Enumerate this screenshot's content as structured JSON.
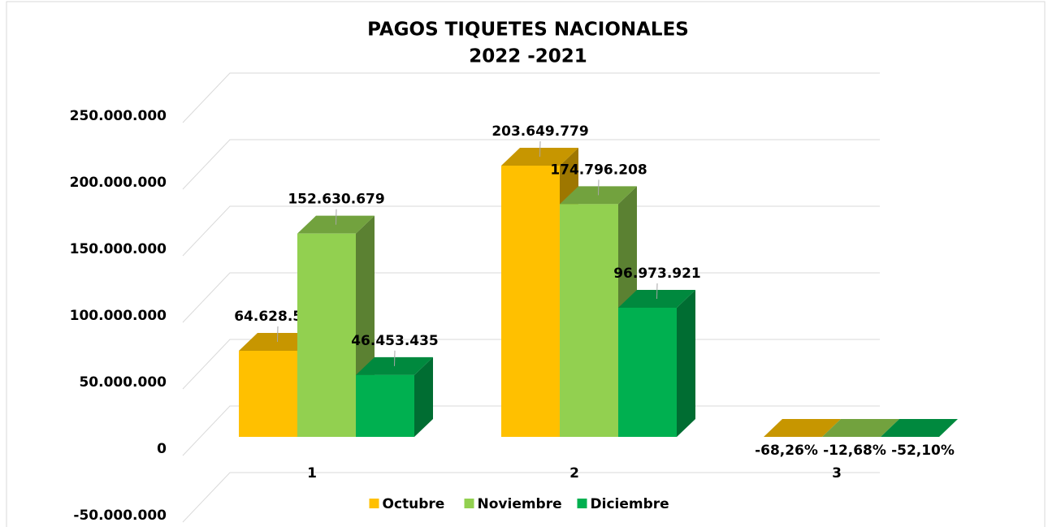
{
  "chart_data": {
    "type": "bar3d",
    "title": "PAGOS TIQUETES NACIONALES",
    "subtitle": "2022 -2021",
    "categories": [
      "1",
      "2",
      "3"
    ],
    "series": [
      {
        "name": "Octubre",
        "color": "#ffc000",
        "values": [
          64628582,
          203649779,
          -0.6826
        ],
        "value_labels": [
          "64.628.582",
          "203.649.779",
          "-68,26%"
        ]
      },
      {
        "name": "Noviembre",
        "color": "#92d050",
        "values": [
          152630679,
          174796208,
          -0.1268
        ],
        "value_labels": [
          "152.630.679",
          "174.796.208",
          "-12,68%"
        ]
      },
      {
        "name": "Diciembre",
        "color": "#00b050",
        "values": [
          46453435,
          96973921,
          -0.521
        ],
        "value_labels": [
          "46.453.435",
          "96.973.921",
          "-52,10%"
        ]
      }
    ],
    "ylim": [
      -50000000,
      250000000
    ],
    "yticks": [
      {
        "value": -50000000,
        "label": "-50.000.000"
      },
      0,
      {
        "value": 50000000,
        "label": "50.000.000"
      },
      {
        "value": 100000000,
        "label": "100.000.000"
      },
      {
        "value": 150000000,
        "label": "150.000.000"
      },
      {
        "value": 200000000,
        "label": "200.000.000"
      },
      {
        "value": 250000000,
        "label": "250.000.000"
      }
    ],
    "grid": true,
    "legend": "bottom"
  }
}
